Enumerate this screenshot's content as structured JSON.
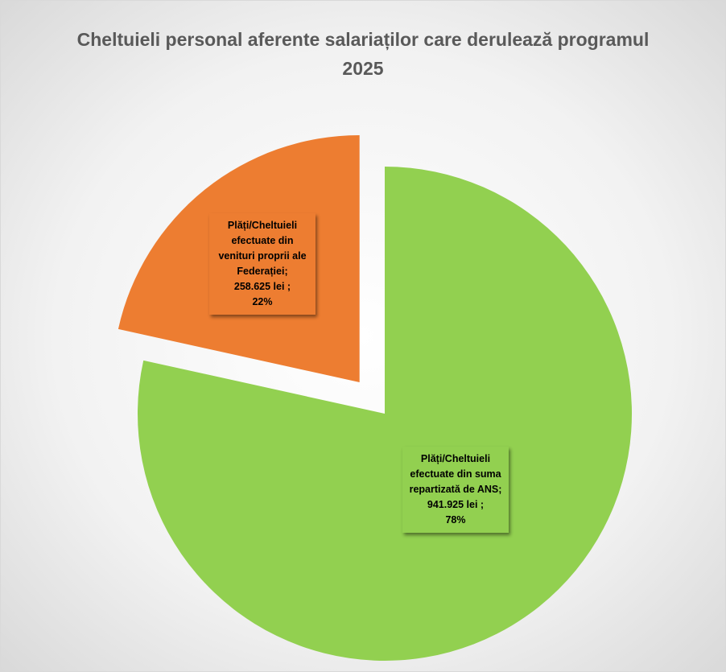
{
  "chart_data": {
    "type": "pie",
    "title": "Cheltuieli personal aferente salariaților care derulează programul",
    "subtitle": "2025",
    "categories": [
      "Plăți/Cheltuieli efectuate din suma repartizată de ANS;",
      "Plăți/Cheltuieli efectuate din venituri proprii ale Federației;"
    ],
    "values": [
      941925,
      258625
    ],
    "value_labels": [
      "941.925 lei ;",
      "258.625 lei ;"
    ],
    "percents": [
      78,
      22
    ],
    "percent_labels": [
      "78%",
      "22%"
    ],
    "colors": [
      "#92d050",
      "#ed7d31"
    ]
  }
}
